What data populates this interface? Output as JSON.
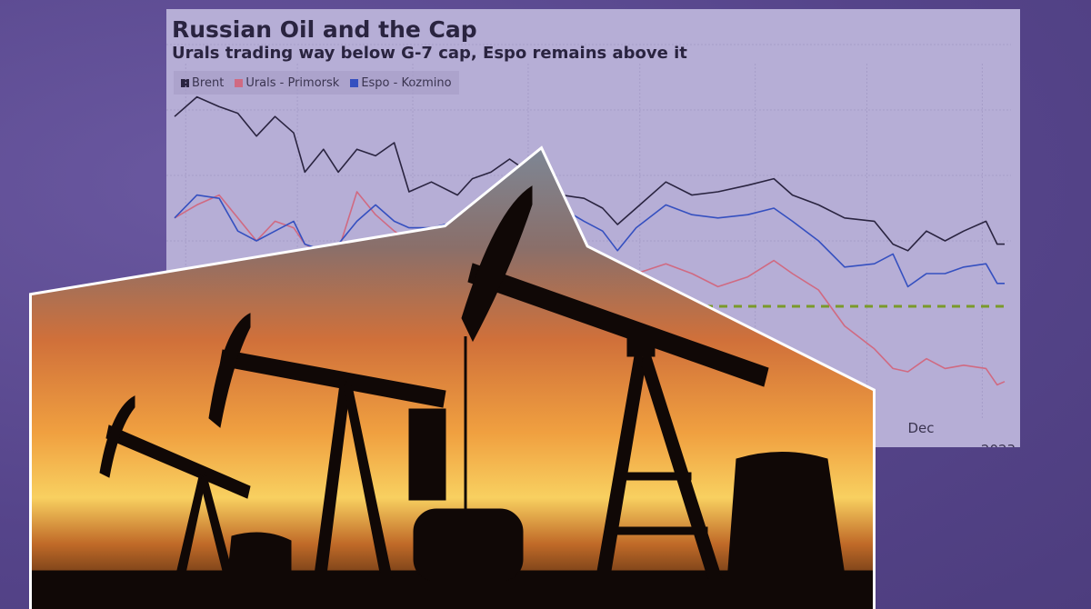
{
  "chart_data": {
    "type": "line",
    "title": "Russian Oil and the Cap",
    "subtitle": "Urals trading way below G-7 cap, Espo remains above it",
    "legend_position": "top-left",
    "grid": true,
    "xlim": [
      "2022-05-29",
      "2023-01-07"
    ],
    "ylim": [
      25,
      140
    ],
    "x_tick_labels": [
      "Dec",
      "2023"
    ],
    "cap_line": {
      "value": 60,
      "color": "#7a9a2a",
      "style": "dashed"
    },
    "x": [
      "2022-05-29",
      "2022-06-04",
      "2022-06-10",
      "2022-06-15",
      "2022-06-20",
      "2022-06-25",
      "2022-06-30",
      "2022-07-03",
      "2022-07-08",
      "2022-07-12",
      "2022-07-17",
      "2022-07-22",
      "2022-07-27",
      "2022-07-31",
      "2022-08-06",
      "2022-08-13",
      "2022-08-17",
      "2022-08-22",
      "2022-08-27",
      "2022-09-10",
      "2022-09-16",
      "2022-09-21",
      "2022-09-25",
      "2022-09-30",
      "2022-10-08",
      "2022-10-15",
      "2022-10-22",
      "2022-10-30",
      "2022-11-06",
      "2022-11-11",
      "2022-11-18",
      "2022-11-25",
      "2022-12-03",
      "2022-12-08",
      "2022-12-12",
      "2022-12-17",
      "2022-12-22",
      "2022-12-27",
      "2023-01-02",
      "2023-01-05",
      "2023-01-07"
    ],
    "series": [
      {
        "name": "Brent",
        "color": "#2a2440",
        "values": [
          118,
          124,
          121,
          119,
          112,
          118,
          113,
          101,
          108,
          101,
          108,
          106,
          110,
          95,
          98,
          94,
          99,
          101,
          105,
          94,
          93,
          90,
          85,
          90,
          98,
          94,
          95,
          97,
          99,
          94,
          91,
          87,
          86,
          79,
          77,
          83,
          80,
          83,
          86,
          79,
          79
        ]
      },
      {
        "name": "Urals - Primorsk",
        "color": "#d06a82",
        "values": [
          87,
          91,
          94,
          87,
          80,
          86,
          84,
          79,
          76,
          77,
          95,
          88,
          83,
          80,
          77,
          79,
          80,
          79,
          77,
          74,
          73,
          72,
          69,
          70,
          73,
          70,
          66,
          69,
          74,
          70,
          65,
          54,
          47,
          41,
          40,
          44,
          41,
          42,
          41,
          36,
          37
        ]
      },
      {
        "name": "Espo - Kozmino",
        "color": "#3550c0",
        "values": [
          87,
          94,
          93,
          83,
          80,
          83,
          86,
          79,
          77,
          79,
          86,
          91,
          86,
          84,
          84,
          86,
          87,
          88,
          90,
          90,
          86,
          83,
          77,
          84,
          91,
          88,
          87,
          88,
          90,
          86,
          80,
          72,
          73,
          76,
          66,
          70,
          70,
          72,
          73,
          67,
          67
        ]
      }
    ]
  },
  "colors": {
    "background": "#5a4888",
    "panel": "#b6aed6"
  }
}
